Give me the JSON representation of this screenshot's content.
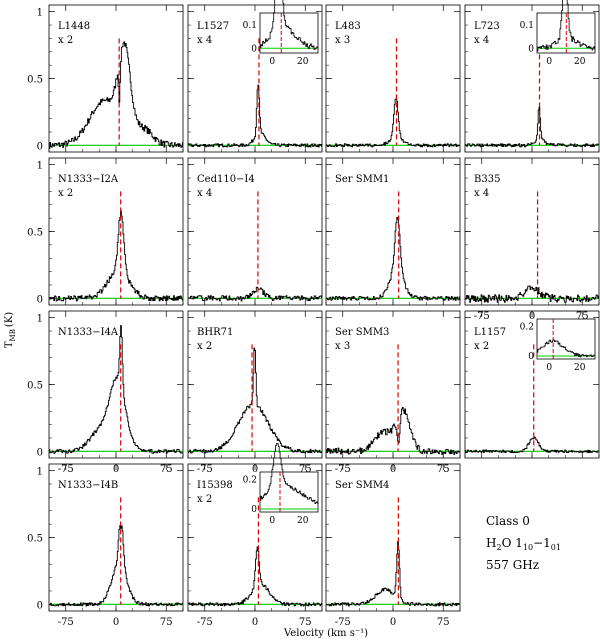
{
  "figure": {
    "xlabel": "Velocity (km s⁻¹)",
    "ylabel": "T",
    "ylabel_sub": "MB",
    "ylabel_unit": "(K)",
    "legend": {
      "line1": "Class 0",
      "line2_mol": "H",
      "line2_sub": "2",
      "line2_rest": "O  1",
      "line2_t1": "10",
      "line2_dash": "−1",
      "line2_t2": "01",
      "line3": "557 GHz"
    },
    "colors": {
      "spectrum": "#000000",
      "vlsr": "#e00000",
      "baseline": "#00c800"
    }
  },
  "chart_data": {
    "type": "line",
    "xlim": [
      -100,
      100
    ],
    "ylim": [
      -0.05,
      1.05
    ],
    "xticks": [
      -75,
      0,
      75
    ],
    "yticks": [
      0,
      0.5,
      1
    ],
    "panels": [
      {
        "name": "L1448",
        "scale": "x 2",
        "vlsr": 4.7,
        "comps": [
          [
            0.62,
            12,
            9
          ],
          [
            0.33,
            -18,
            22
          ],
          [
            0.12,
            40,
            14
          ]
        ],
        "absorb": [
          0.3,
          4.7,
          1.2
        ],
        "noise": 0.025
      },
      {
        "name": "L1527",
        "scale": "x 4",
        "vlsr": 5.9,
        "comps": [
          [
            0.38,
            4,
            1.8
          ],
          [
            0.09,
            7,
            8
          ]
        ],
        "noise": 0.012,
        "inset": {
          "xticks": [
            0,
            20
          ],
          "yticks": [
            0,
            0.1
          ],
          "ylim": [
            -0.02,
            0.15
          ]
        }
      },
      {
        "name": "L483",
        "scale": "x 3",
        "vlsr": 5.2,
        "comps": [
          [
            0.3,
            4,
            3
          ],
          [
            0.06,
            4,
            9
          ]
        ],
        "noise": 0.012
      },
      {
        "name": "L723",
        "scale": "x 4",
        "vlsr": 11.2,
        "comps": [
          [
            0.26,
            10,
            1.6
          ],
          [
            0.04,
            12,
            7
          ]
        ],
        "noise": 0.012,
        "inset": {
          "xticks": [
            0,
            20
          ],
          "yticks": [
            0,
            0.1
          ],
          "ylim": [
            -0.02,
            0.15
          ]
        }
      },
      {
        "name": "N1333−I2A",
        "scale": "x 2",
        "vlsr": 7.0,
        "comps": [
          [
            0.45,
            7,
            4
          ],
          [
            0.2,
            3,
            16
          ]
        ],
        "noise": 0.02
      },
      {
        "name": "Ced110−I4",
        "scale": "x 4",
        "vlsr": 4.4,
        "comps": [
          [
            0.07,
            4,
            8
          ]
        ],
        "noise": 0.02
      },
      {
        "name": "Ser SMM1",
        "scale": "",
        "vlsr": 8.5,
        "comps": [
          [
            0.4,
            6,
            3.5
          ],
          [
            0.22,
            5,
            10
          ]
        ],
        "noise": 0.015
      },
      {
        "name": "B335",
        "scale": "x 4",
        "vlsr": 8.3,
        "comps": [
          [
            0.08,
            0,
            10
          ]
        ],
        "noise": 0.03
      },
      {
        "name": "N1333−I4A",
        "scale": "",
        "vlsr": 7.0,
        "comps": [
          [
            0.45,
            7,
            1.8
          ],
          [
            0.52,
            2,
            12
          ],
          [
            0.15,
            -25,
            15
          ]
        ],
        "noise": 0.015
      },
      {
        "name": "BHR71",
        "scale": "x 2",
        "vlsr": -4.4,
        "comps": [
          [
            0.45,
            -1,
            1.6
          ],
          [
            0.35,
            -3,
            22
          ]
        ],
        "noise": 0.015
      },
      {
        "name": "Ser SMM3",
        "scale": "x 3",
        "vlsr": 7.6,
        "comps": [
          [
            0.3,
            15,
            10
          ],
          [
            0.14,
            -15,
            14
          ]
        ],
        "absorb": [
          0.22,
          7.6,
          2
        ],
        "noise": 0.025
      },
      {
        "name": "L1157",
        "scale": "x 2",
        "vlsr": 2.6,
        "comps": [
          [
            0.1,
            2,
            7
          ]
        ],
        "noise": 0.01,
        "inset": {
          "xticks": [
            0,
            20
          ],
          "yticks": [
            0,
            0.2
          ],
          "ylim": [
            -0.02,
            0.25
          ]
        }
      },
      {
        "name": "N1333−I4B",
        "scale": "",
        "vlsr": 7.0,
        "comps": [
          [
            0.38,
            7,
            3
          ],
          [
            0.3,
            4,
            11
          ]
        ],
        "absorb": [
          0.1,
          7,
          1
        ],
        "noise": 0.012
      },
      {
        "name": "I15398",
        "scale": "x 2",
        "vlsr": 5.1,
        "comps": [
          [
            0.3,
            3,
            2.5
          ],
          [
            0.15,
            8,
            13
          ]
        ],
        "noise": 0.012,
        "inset": {
          "xticks": [
            0,
            20
          ],
          "yticks": [
            0,
            0.2
          ],
          "ylim": [
            -0.02,
            0.25
          ]
        }
      },
      {
        "name": "Ser SMM4",
        "scale": "",
        "vlsr": 8.0,
        "comps": [
          [
            0.42,
            7,
            2
          ],
          [
            0.11,
            -12,
            14
          ]
        ],
        "noise": 0.012
      }
    ]
  }
}
